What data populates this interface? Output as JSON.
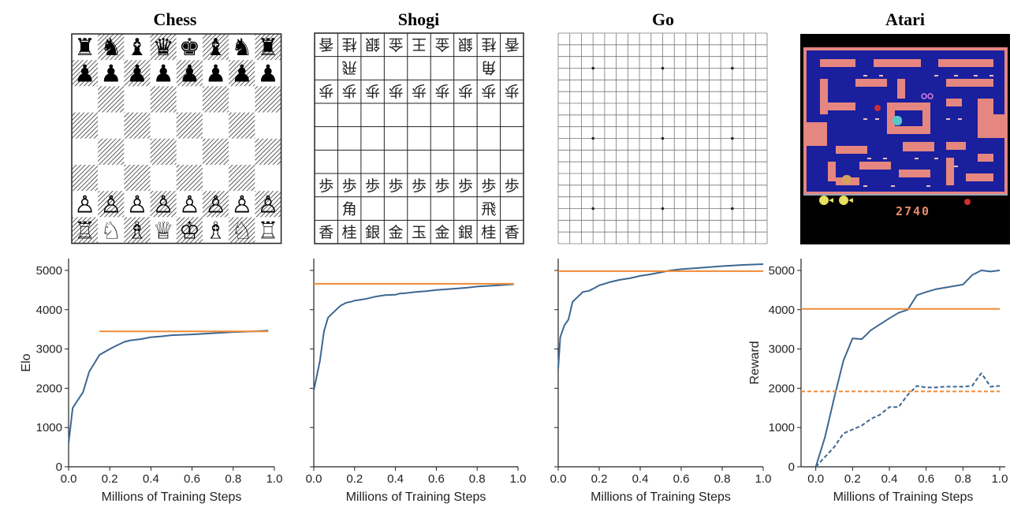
{
  "colors": {
    "agent_line": "#3d6791",
    "baseline_line": "#ef8a36",
    "atari_background": "#1a1f9e",
    "atari_wall": "#e58680",
    "atari_screen_dark": "#000000"
  },
  "panels": [
    {
      "title": "Chess",
      "board": "chess"
    },
    {
      "title": "Shogi",
      "board": "shogi"
    },
    {
      "title": "Go",
      "board": "go"
    },
    {
      "title": "Atari",
      "board": "atari"
    }
  ],
  "chess": {
    "back_rank_black": [
      "♜",
      "♞",
      "♝",
      "♛",
      "♚",
      "♝",
      "♞",
      "♜"
    ],
    "pawn_black": "♟",
    "back_rank_white": [
      "♖",
      "♘",
      "♗",
      "♕",
      "♔",
      "♗",
      "♘",
      "♖"
    ],
    "pawn_white": "♙"
  },
  "shogi": {
    "back_rank": [
      "香",
      "桂",
      "銀",
      "金",
      "玉",
      "金",
      "銀",
      "桂",
      "香"
    ],
    "top_rank": [
      "香",
      "桂",
      "銀",
      "金",
      "王",
      "金",
      "銀",
      "桂",
      "香"
    ],
    "pawn": "歩",
    "rook": "飛",
    "bishop": "角"
  },
  "atari": {
    "score": "2740"
  },
  "chart_data": [
    {
      "type": "line",
      "title": "Chess",
      "xlabel": "Millions of Training Steps",
      "ylabel": "Elo",
      "xlim": [
        0,
        1.0
      ],
      "ylim": [
        0,
        5300
      ],
      "xticks": [
        "0.0",
        "0.2",
        "0.4",
        "0.6",
        "0.8",
        "1.0"
      ],
      "yticks": [
        "0",
        "1000",
        "2000",
        "3000",
        "4000",
        "5000"
      ],
      "series": [
        {
          "style": "solid",
          "color": "agent",
          "x": [
            0,
            0.02,
            0.07,
            0.1,
            0.15,
            0.2,
            0.23,
            0.27,
            0.3,
            0.35,
            0.4,
            0.45,
            0.5,
            0.6,
            0.7,
            0.8,
            0.9,
            0.97
          ],
          "y": [
            600,
            1500,
            1900,
            2420,
            2850,
            3000,
            3080,
            3180,
            3220,
            3250,
            3300,
            3320,
            3350,
            3370,
            3400,
            3430,
            3450,
            3470
          ]
        },
        {
          "style": "solid",
          "color": "baseline",
          "x": [
            0.15,
            0.97
          ],
          "y": [
            3450,
            3450
          ]
        }
      ]
    },
    {
      "type": "line",
      "title": "Shogi",
      "xlabel": "Millions of Training Steps",
      "ylabel": "",
      "xlim": [
        0,
        1.0
      ],
      "ylim": [
        0,
        5300
      ],
      "xticks": [
        "0.0",
        "0.2",
        "0.4",
        "0.6",
        "0.8",
        "1.0"
      ],
      "yticks": [],
      "series": [
        {
          "style": "solid",
          "color": "agent",
          "x": [
            0,
            0.03,
            0.05,
            0.07,
            0.1,
            0.13,
            0.16,
            0.18,
            0.2,
            0.25,
            0.3,
            0.35,
            0.4,
            0.42,
            0.45,
            0.5,
            0.55,
            0.6,
            0.65,
            0.7,
            0.75,
            0.8,
            0.9,
            0.98
          ],
          "y": [
            1950,
            2700,
            3450,
            3800,
            3950,
            4100,
            4180,
            4200,
            4230,
            4270,
            4330,
            4370,
            4380,
            4410,
            4420,
            4450,
            4470,
            4500,
            4520,
            4540,
            4560,
            4590,
            4620,
            4650
          ]
        },
        {
          "style": "solid",
          "color": "baseline",
          "x": [
            0,
            0.98
          ],
          "y": [
            4660,
            4660
          ]
        }
      ]
    },
    {
      "type": "line",
      "title": "Go",
      "xlabel": "Millions of Training Steps",
      "ylabel": "",
      "xlim": [
        0,
        1.0
      ],
      "ylim": [
        0,
        5300
      ],
      "xticks": [
        "0.0",
        "0.2",
        "0.4",
        "0.6",
        "0.8",
        "1.0"
      ],
      "yticks": [],
      "series": [
        {
          "style": "solid",
          "color": "agent",
          "x": [
            0,
            0.01,
            0.03,
            0.05,
            0.07,
            0.1,
            0.12,
            0.15,
            0.18,
            0.2,
            0.25,
            0.3,
            0.35,
            0.4,
            0.45,
            0.5,
            0.55,
            0.6,
            0.7,
            0.8,
            0.9,
            1.0
          ],
          "y": [
            2500,
            3300,
            3600,
            3750,
            4200,
            4350,
            4450,
            4480,
            4560,
            4620,
            4700,
            4760,
            4800,
            4860,
            4900,
            4950,
            5000,
            5030,
            5070,
            5110,
            5140,
            5160
          ]
        },
        {
          "style": "solid",
          "color": "baseline",
          "x": [
            0,
            1.0
          ],
          "y": [
            4980,
            4980
          ]
        }
      ]
    },
    {
      "type": "line",
      "title": "Atari",
      "xlabel": "Millions of Training Steps",
      "ylabel": "Reward",
      "xlim": [
        -0.08,
        1.03
      ],
      "ylim": [
        0,
        5300
      ],
      "xticks": [
        "0.0",
        "0.2",
        "0.4",
        "0.6",
        "0.8",
        "1.0"
      ],
      "yticks": [
        "0",
        "1000",
        "2000",
        "3000",
        "4000",
        "5000"
      ],
      "series": [
        {
          "style": "solid",
          "color": "agent",
          "x": [
            0,
            0.05,
            0.1,
            0.15,
            0.2,
            0.25,
            0.3,
            0.35,
            0.4,
            0.45,
            0.5,
            0.55,
            0.6,
            0.65,
            0.7,
            0.75,
            0.8,
            0.85,
            0.9,
            0.95,
            1.0
          ],
          "y": [
            0,
            750,
            1750,
            2700,
            3270,
            3250,
            3480,
            3630,
            3780,
            3920,
            4000,
            4370,
            4450,
            4520,
            4560,
            4600,
            4640,
            4880,
            5000,
            4970,
            5000
          ]
        },
        {
          "style": "solid",
          "color": "baseline",
          "x": [
            -0.08,
            1.0
          ],
          "y": [
            4020,
            4020
          ]
        },
        {
          "style": "dashed",
          "color": "agent",
          "x": [
            0,
            0.05,
            0.1,
            0.15,
            0.2,
            0.25,
            0.3,
            0.35,
            0.4,
            0.45,
            0.5,
            0.55,
            0.6,
            0.65,
            0.7,
            0.75,
            0.8,
            0.85,
            0.88,
            0.9,
            0.93,
            0.95,
            1.0
          ],
          "y": [
            0,
            250,
            500,
            850,
            950,
            1050,
            1220,
            1330,
            1520,
            1520,
            1830,
            2060,
            2020,
            2020,
            2040,
            2040,
            2040,
            2060,
            2260,
            2380,
            2180,
            2040,
            2060
          ]
        },
        {
          "style": "dashed",
          "color": "baseline",
          "x": [
            -0.08,
            1.0
          ],
          "y": [
            1920,
            1920
          ]
        }
      ]
    }
  ]
}
